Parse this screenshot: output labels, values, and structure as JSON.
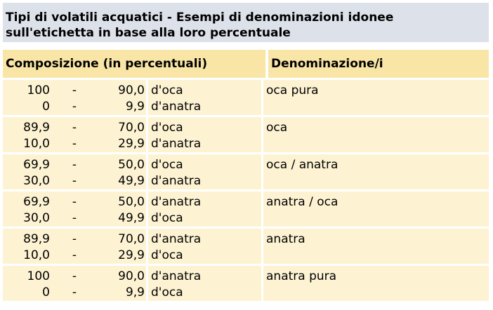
{
  "title": "Tipi di volatili acquatici - Esempi di denominazioni idonee sull'etichetta in base alla loro percentuale",
  "header": {
    "composition": "Composizione (in percentuali)",
    "denomination": "Denominazione/i"
  },
  "rows": [
    {
      "from": [
        "100",
        "0"
      ],
      "dash": [
        "-",
        "-"
      ],
      "to": [
        "90,0",
        "9,9"
      ],
      "kind": [
        "d'oca",
        "d'anatra"
      ],
      "name": "oca pura"
    },
    {
      "from": [
        "89,9",
        "10,0"
      ],
      "dash": [
        "-",
        "-"
      ],
      "to": [
        "70,0",
        "29,9"
      ],
      "kind": [
        "d'oca",
        "d'anatra"
      ],
      "name": "oca"
    },
    {
      "from": [
        "69,9",
        "30,0"
      ],
      "dash": [
        "-",
        "-"
      ],
      "to": [
        "50,0",
        "49,9"
      ],
      "kind": [
        "d'oca",
        "d'anatra"
      ],
      "name": "oca / anatra"
    },
    {
      "from": [
        "69,9",
        "30,0"
      ],
      "dash": [
        "-",
        "-"
      ],
      "to": [
        "50,0",
        "49,9"
      ],
      "kind": [
        "d'anatra",
        "d'oca"
      ],
      "name": "anatra / oca"
    },
    {
      "from": [
        "89,9",
        "10,0"
      ],
      "dash": [
        "-",
        "-"
      ],
      "to": [
        "70,0",
        "29,9"
      ],
      "kind": [
        "d'anatra",
        "d'oca"
      ],
      "name": "anatra"
    },
    {
      "from": [
        "100",
        "0"
      ],
      "dash": [
        "-",
        "-"
      ],
      "to": [
        "90,0",
        "9,9"
      ],
      "kind": [
        "d'anatra",
        "d'oca"
      ],
      "name": "anatra pura"
    }
  ]
}
